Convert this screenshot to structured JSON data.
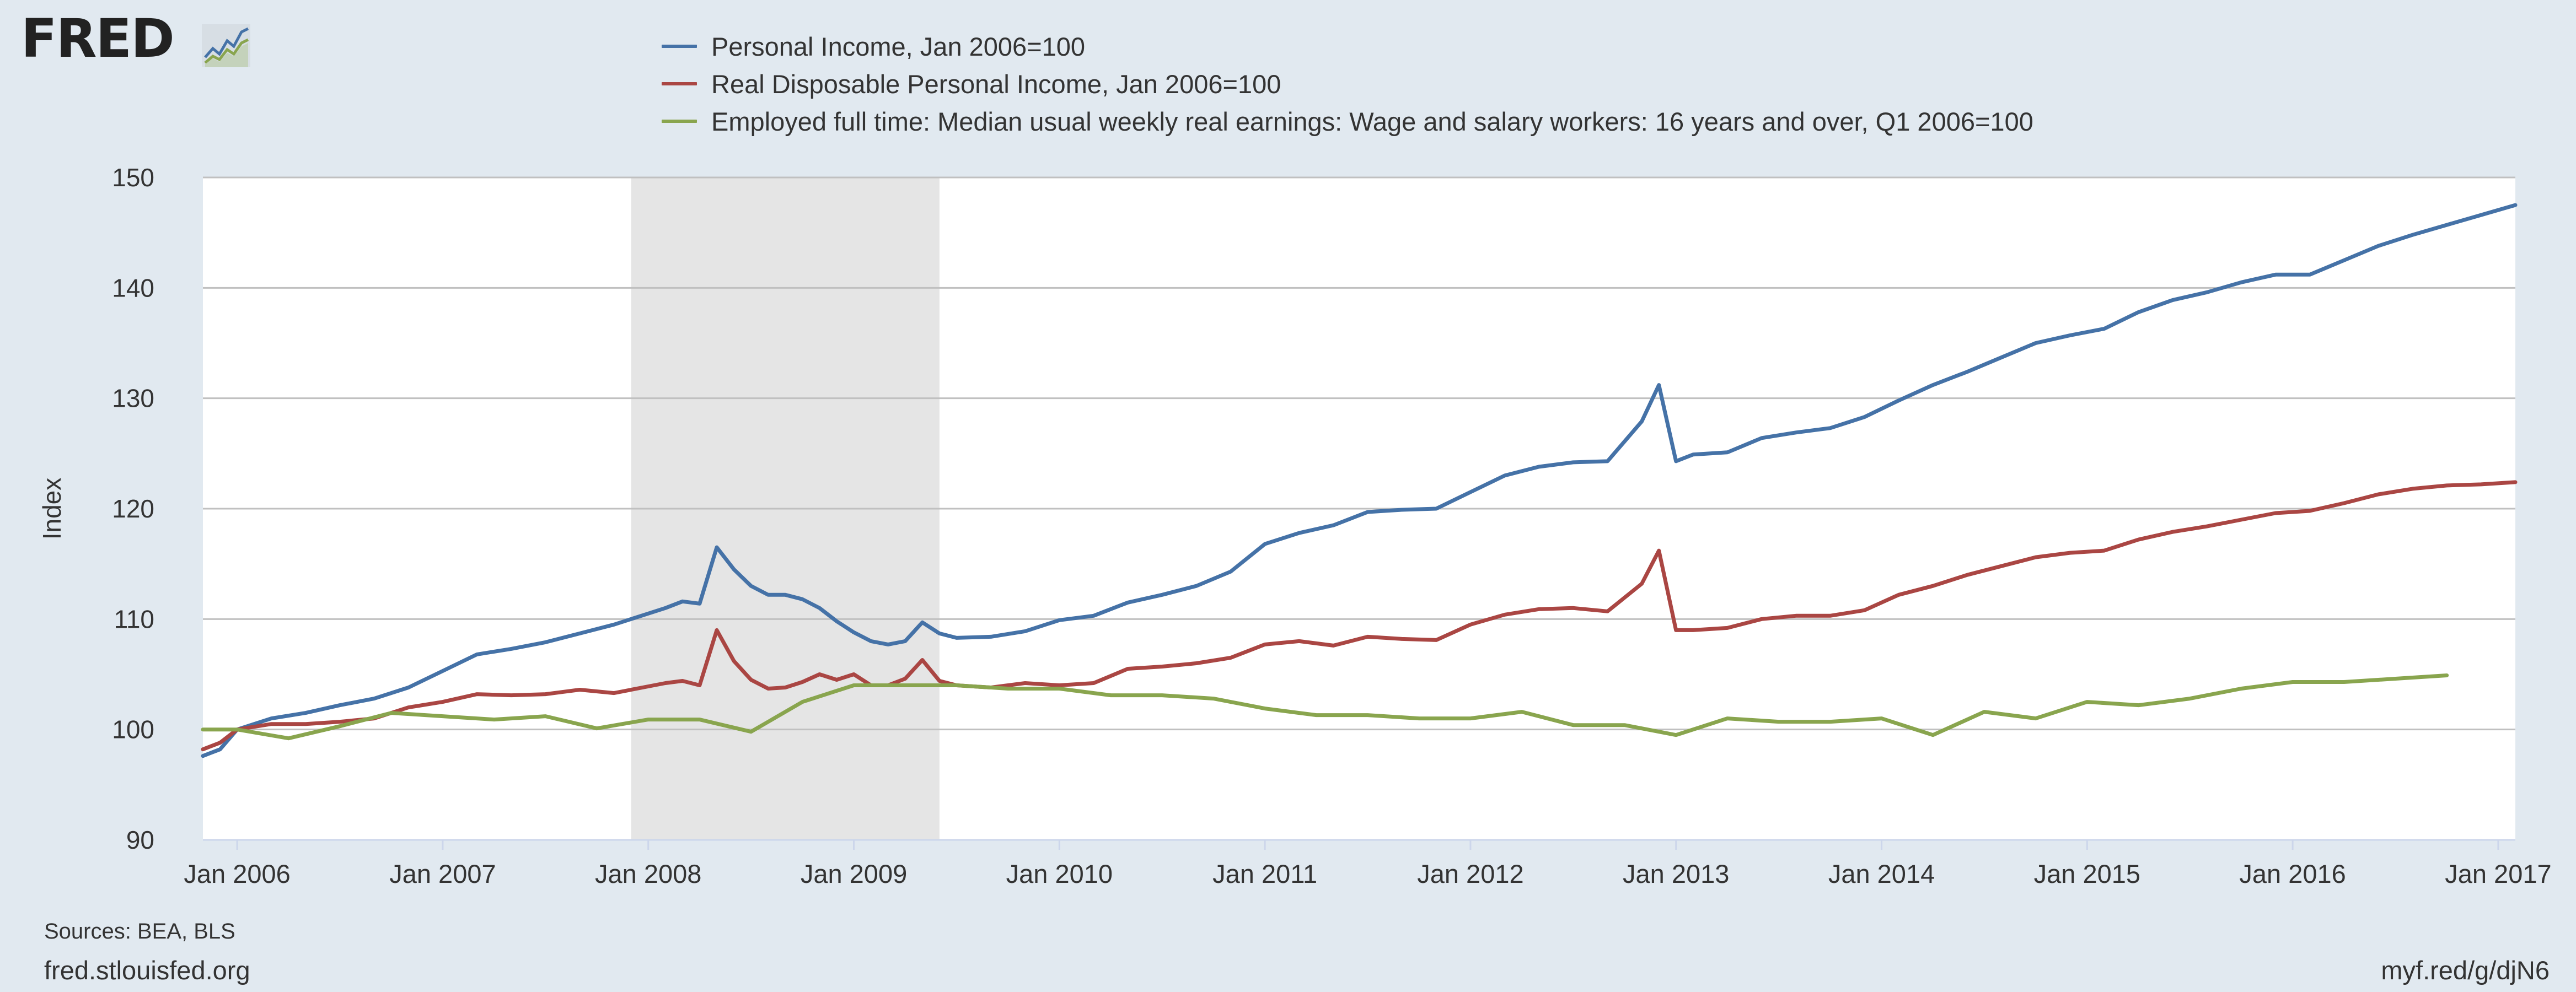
{
  "header": {
    "logo_text": "FRED",
    "logo_icon": "fred-chart-logo-icon"
  },
  "legend": {
    "items": [
      {
        "label": "Personal Income, Jan 2006=100",
        "color": "#4572a7"
      },
      {
        "label": "Real Disposable Personal Income, Jan 2006=100",
        "color": "#aa4643"
      },
      {
        "label": "Employed full time: Median usual weekly real earnings: Wage and salary workers: 16 years and over, Q1 2006=100",
        "color": "#89a54e"
      }
    ]
  },
  "footer": {
    "sources": "Sources: BEA, BLS",
    "site": "fred.stlouisfed.org",
    "link": "myf.red/g/djN6"
  },
  "colors": {
    "background": "#e1e9f0",
    "plot_background": "#ffffff",
    "recession_shade": "#e5e5e5",
    "gridline": "#c0c0c0"
  },
  "chart_data": {
    "type": "line",
    "ylabel": "Index",
    "xlabel": "",
    "ylim": [
      90,
      150
    ],
    "yticks": [
      90,
      100,
      110,
      120,
      130,
      140,
      150
    ],
    "xlim": [
      "2005-11",
      "2017-02"
    ],
    "xticks": [
      {
        "date": "2006-01",
        "label": "Jan 2006"
      },
      {
        "date": "2007-01",
        "label": "Jan 2007"
      },
      {
        "date": "2008-01",
        "label": "Jan 2008"
      },
      {
        "date": "2009-01",
        "label": "Jan 2009"
      },
      {
        "date": "2010-01",
        "label": "Jan 2010"
      },
      {
        "date": "2011-01",
        "label": "Jan 2011"
      },
      {
        "date": "2012-01",
        "label": "Jan 2012"
      },
      {
        "date": "2013-01",
        "label": "Jan 2013"
      },
      {
        "date": "2014-01",
        "label": "Jan 2014"
      },
      {
        "date": "2015-01",
        "label": "Jan 2015"
      },
      {
        "date": "2016-01",
        "label": "Jan 2016"
      },
      {
        "date": "2017-01",
        "label": "Jan 2017"
      }
    ],
    "grid": true,
    "legend_position": "top",
    "recessions": [
      {
        "start": "2007-12",
        "end": "2009-06"
      }
    ],
    "series": [
      {
        "name": "Personal Income, Jan 2006=100",
        "color": "#4572a7",
        "points": [
          [
            "2005-11",
            97.6
          ],
          [
            "2005-12",
            98.2
          ],
          [
            "2006-01",
            100.0
          ],
          [
            "2006-03",
            101.0
          ],
          [
            "2006-05",
            101.5
          ],
          [
            "2006-07",
            102.2
          ],
          [
            "2006-09",
            102.8
          ],
          [
            "2006-11",
            103.8
          ],
          [
            "2007-01",
            105.3
          ],
          [
            "2007-03",
            106.8
          ],
          [
            "2007-05",
            107.3
          ],
          [
            "2007-07",
            107.9
          ],
          [
            "2007-09",
            108.7
          ],
          [
            "2007-11",
            109.5
          ],
          [
            "2008-01",
            110.5
          ],
          [
            "2008-02",
            111.0
          ],
          [
            "2008-03",
            111.6
          ],
          [
            "2008-04",
            111.4
          ],
          [
            "2008-05",
            116.5
          ],
          [
            "2008-06",
            114.5
          ],
          [
            "2008-07",
            113.0
          ],
          [
            "2008-08",
            112.2
          ],
          [
            "2008-09",
            112.2
          ],
          [
            "2008-10",
            111.8
          ],
          [
            "2008-11",
            111.0
          ],
          [
            "2008-12",
            109.8
          ],
          [
            "2009-01",
            108.8
          ],
          [
            "2009-02",
            108.0
          ],
          [
            "2009-03",
            107.7
          ],
          [
            "2009-04",
            108.0
          ],
          [
            "2009-05",
            109.7
          ],
          [
            "2009-06",
            108.7
          ],
          [
            "2009-07",
            108.3
          ],
          [
            "2009-09",
            108.4
          ],
          [
            "2009-11",
            108.9
          ],
          [
            "2010-01",
            109.9
          ],
          [
            "2010-03",
            110.3
          ],
          [
            "2010-05",
            111.5
          ],
          [
            "2010-07",
            112.2
          ],
          [
            "2010-09",
            113.0
          ],
          [
            "2010-11",
            114.3
          ],
          [
            "2011-01",
            116.8
          ],
          [
            "2011-03",
            117.8
          ],
          [
            "2011-05",
            118.5
          ],
          [
            "2011-07",
            119.7
          ],
          [
            "2011-09",
            119.9
          ],
          [
            "2011-11",
            120.0
          ],
          [
            "2012-01",
            121.5
          ],
          [
            "2012-03",
            123.0
          ],
          [
            "2012-05",
            123.8
          ],
          [
            "2012-07",
            124.2
          ],
          [
            "2012-09",
            124.3
          ],
          [
            "2012-11",
            127.9
          ],
          [
            "2012-12",
            131.2
          ],
          [
            "2013-01",
            124.3
          ],
          [
            "2013-02",
            124.9
          ],
          [
            "2013-04",
            125.1
          ],
          [
            "2013-06",
            126.4
          ],
          [
            "2013-08",
            126.9
          ],
          [
            "2013-10",
            127.3
          ],
          [
            "2013-12",
            128.3
          ],
          [
            "2014-02",
            129.8
          ],
          [
            "2014-04",
            131.2
          ],
          [
            "2014-06",
            132.4
          ],
          [
            "2014-08",
            133.7
          ],
          [
            "2014-10",
            135.0
          ],
          [
            "2014-12",
            135.7
          ],
          [
            "2015-02",
            136.3
          ],
          [
            "2015-04",
            137.8
          ],
          [
            "2015-06",
            138.9
          ],
          [
            "2015-08",
            139.6
          ],
          [
            "2015-10",
            140.5
          ],
          [
            "2015-12",
            141.2
          ],
          [
            "2016-02",
            141.2
          ],
          [
            "2016-04",
            142.5
          ],
          [
            "2016-06",
            143.8
          ],
          [
            "2016-08",
            144.8
          ],
          [
            "2016-10",
            145.7
          ],
          [
            "2016-12",
            146.6
          ],
          [
            "2017-02",
            147.5
          ]
        ]
      },
      {
        "name": "Real Disposable Personal Income, Jan 2006=100",
        "color": "#aa4643",
        "points": [
          [
            "2005-11",
            98.2
          ],
          [
            "2005-12",
            98.8
          ],
          [
            "2006-01",
            100.0
          ],
          [
            "2006-03",
            100.5
          ],
          [
            "2006-05",
            100.5
          ],
          [
            "2006-07",
            100.7
          ],
          [
            "2006-09",
            101.0
          ],
          [
            "2006-11",
            102.0
          ],
          [
            "2007-01",
            102.5
          ],
          [
            "2007-03",
            103.2
          ],
          [
            "2007-05",
            103.1
          ],
          [
            "2007-07",
            103.2
          ],
          [
            "2007-09",
            103.6
          ],
          [
            "2007-11",
            103.3
          ],
          [
            "2008-01",
            103.9
          ],
          [
            "2008-02",
            104.2
          ],
          [
            "2008-03",
            104.4
          ],
          [
            "2008-04",
            104.0
          ],
          [
            "2008-05",
            109.0
          ],
          [
            "2008-06",
            106.2
          ],
          [
            "2008-07",
            104.5
          ],
          [
            "2008-08",
            103.7
          ],
          [
            "2008-09",
            103.8
          ],
          [
            "2008-10",
            104.3
          ],
          [
            "2008-11",
            105.0
          ],
          [
            "2008-12",
            104.5
          ],
          [
            "2009-01",
            105.0
          ],
          [
            "2009-02",
            104.0
          ],
          [
            "2009-03",
            104.0
          ],
          [
            "2009-04",
            104.6
          ],
          [
            "2009-05",
            106.3
          ],
          [
            "2009-06",
            104.4
          ],
          [
            "2009-07",
            104.0
          ],
          [
            "2009-09",
            103.8
          ],
          [
            "2009-11",
            104.2
          ],
          [
            "2010-01",
            104.0
          ],
          [
            "2010-03",
            104.2
          ],
          [
            "2010-05",
            105.5
          ],
          [
            "2010-07",
            105.7
          ],
          [
            "2010-09",
            106.0
          ],
          [
            "2010-11",
            106.5
          ],
          [
            "2011-01",
            107.7
          ],
          [
            "2011-03",
            108.0
          ],
          [
            "2011-05",
            107.6
          ],
          [
            "2011-07",
            108.4
          ],
          [
            "2011-09",
            108.2
          ],
          [
            "2011-11",
            108.1
          ],
          [
            "2012-01",
            109.5
          ],
          [
            "2012-03",
            110.4
          ],
          [
            "2012-05",
            110.9
          ],
          [
            "2012-07",
            111.0
          ],
          [
            "2012-09",
            110.7
          ],
          [
            "2012-11",
            113.2
          ],
          [
            "2012-12",
            116.2
          ],
          [
            "2013-01",
            109.0
          ],
          [
            "2013-02",
            109.0
          ],
          [
            "2013-04",
            109.2
          ],
          [
            "2013-06",
            110.0
          ],
          [
            "2013-08",
            110.3
          ],
          [
            "2013-10",
            110.3
          ],
          [
            "2013-12",
            110.8
          ],
          [
            "2014-02",
            112.2
          ],
          [
            "2014-04",
            113.0
          ],
          [
            "2014-06",
            114.0
          ],
          [
            "2014-08",
            114.8
          ],
          [
            "2014-10",
            115.6
          ],
          [
            "2014-12",
            116.0
          ],
          [
            "2015-02",
            116.2
          ],
          [
            "2015-04",
            117.2
          ],
          [
            "2015-06",
            117.9
          ],
          [
            "2015-08",
            118.4
          ],
          [
            "2015-10",
            119.0
          ],
          [
            "2015-12",
            119.6
          ],
          [
            "2016-02",
            119.8
          ],
          [
            "2016-04",
            120.5
          ],
          [
            "2016-06",
            121.3
          ],
          [
            "2016-08",
            121.8
          ],
          [
            "2016-10",
            122.1
          ],
          [
            "2016-12",
            122.2
          ],
          [
            "2017-02",
            122.4
          ]
        ]
      },
      {
        "name": "Employed full time: Median usual weekly real earnings: Wage and salary workers: 16 years and over, Q1 2006=100",
        "color": "#89a54e",
        "points": [
          [
            "2005-11",
            100.0
          ],
          [
            "2006-01",
            100.0
          ],
          [
            "2006-04",
            99.2
          ],
          [
            "2006-07",
            100.3
          ],
          [
            "2006-10",
            101.5
          ],
          [
            "2007-01",
            101.2
          ],
          [
            "2007-04",
            100.9
          ],
          [
            "2007-07",
            101.2
          ],
          [
            "2007-10",
            100.1
          ],
          [
            "2008-01",
            100.9
          ],
          [
            "2008-04",
            100.9
          ],
          [
            "2008-07",
            99.8
          ],
          [
            "2008-10",
            102.5
          ],
          [
            "2009-01",
            104.0
          ],
          [
            "2009-04",
            104.0
          ],
          [
            "2009-07",
            104.0
          ],
          [
            "2009-10",
            103.7
          ],
          [
            "2010-01",
            103.7
          ],
          [
            "2010-04",
            103.1
          ],
          [
            "2010-07",
            103.1
          ],
          [
            "2010-10",
            102.8
          ],
          [
            "2011-01",
            101.9
          ],
          [
            "2011-04",
            101.3
          ],
          [
            "2011-07",
            101.3
          ],
          [
            "2011-10",
            101.0
          ],
          [
            "2012-01",
            101.0
          ],
          [
            "2012-04",
            101.6
          ],
          [
            "2012-07",
            100.4
          ],
          [
            "2012-10",
            100.4
          ],
          [
            "2013-01",
            99.5
          ],
          [
            "2013-04",
            101.0
          ],
          [
            "2013-07",
            100.7
          ],
          [
            "2013-10",
            100.7
          ],
          [
            "2014-01",
            101.0
          ],
          [
            "2014-04",
            99.5
          ],
          [
            "2014-07",
            101.6
          ],
          [
            "2014-10",
            101.0
          ],
          [
            "2015-01",
            102.5
          ],
          [
            "2015-04",
            102.2
          ],
          [
            "2015-07",
            102.8
          ],
          [
            "2015-10",
            103.7
          ],
          [
            "2016-01",
            104.3
          ],
          [
            "2016-04",
            104.3
          ],
          [
            "2016-07",
            104.6
          ],
          [
            "2016-10",
            104.9
          ]
        ]
      }
    ]
  }
}
